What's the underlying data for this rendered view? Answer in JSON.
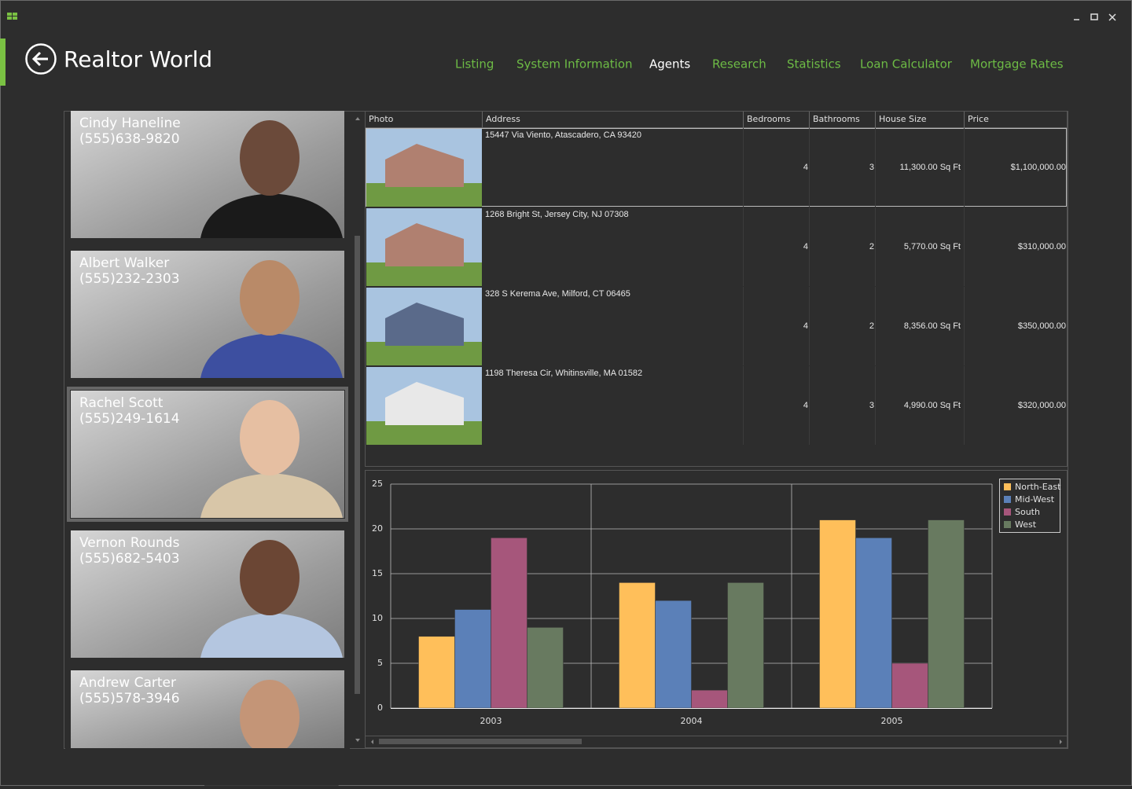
{
  "app": {
    "title": "Realtor World"
  },
  "nav": [
    "Listing",
    "System Information",
    "Agents",
    "Research",
    "Statistics",
    "Loan Calculator",
    "Mortgage Rates"
  ],
  "agents": [
    {
      "name": "Cindy Haneline",
      "phone": "(555)638-9820"
    },
    {
      "name": "Albert Walker",
      "phone": "(555)232-2303"
    },
    {
      "name": "Rachel Scott",
      "phone": "(555)249-1614"
    },
    {
      "name": "Vernon Rounds",
      "phone": "(555)682-5403"
    },
    {
      "name": "Andrew Carter",
      "phone": "(555)578-3946"
    }
  ],
  "table": {
    "columns": [
      "Photo",
      "Address",
      "Bedrooms",
      "Bathrooms",
      "House Size",
      "Price"
    ],
    "rows": [
      [
        "15447 Via Viento,  Atascadero, CA 93420",
        4,
        3,
        "11,300.00 Sq Ft",
        "$1,100,000.00"
      ],
      [
        "1268 Bright St,  Jersey City, NJ 07308",
        4,
        2,
        "5,770.00 Sq Ft",
        "$310,000.00"
      ],
      [
        "328 S Kerema Ave,  Milford, CT 06465",
        4,
        2,
        "8,356.00 Sq Ft",
        "$350,000.00"
      ],
      [
        "1198 Theresa Cir,  Whitinsville, MA 01582",
        4,
        3,
        "4,990.00 Sq Ft",
        "$320,000.00"
      ]
    ]
  },
  "chart_data": {
    "type": "bar",
    "categories": [
      "2003",
      "2004",
      "2005"
    ],
    "series": [
      {
        "name": "North-East",
        "color": "#ffbf5a",
        "values": [
          8,
          14,
          21
        ]
      },
      {
        "name": "Mid-West",
        "color": "#5b80b8",
        "values": [
          11,
          12,
          19
        ]
      },
      {
        "name": "South",
        "color": "#a6567b",
        "values": [
          19,
          2,
          5
        ]
      },
      {
        "name": "West",
        "color": "#687a60",
        "values": [
          9,
          14,
          21
        ]
      }
    ],
    "ylim": [
      0,
      25
    ],
    "yticks": [
      0,
      5,
      10,
      15,
      20,
      25
    ],
    "grid": true,
    "legend": "top-right"
  }
}
